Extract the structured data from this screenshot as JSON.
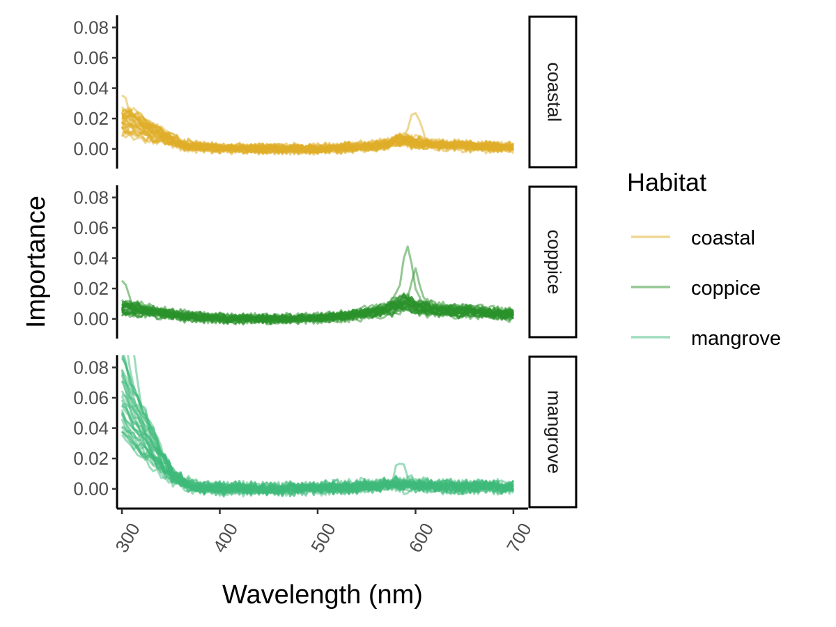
{
  "chart_data": {
    "type": "line",
    "xlabel": "Wavelength (nm)",
    "ylabel": "Importance",
    "xlim": [
      295,
      715
    ],
    "ylim": [
      -0.013,
      0.088
    ],
    "x_ticks": [
      300,
      400,
      500,
      600,
      700
    ],
    "x_tick_labels": [
      "300",
      "400",
      "500",
      "600",
      "700"
    ],
    "x_tick_rotation_deg": -60,
    "y_ticks": [
      0.0,
      0.02,
      0.04,
      0.06,
      0.08
    ],
    "y_tick_labels": [
      "0.00",
      "0.02",
      "0.04",
      "0.06",
      "0.08"
    ],
    "grid": false,
    "legend": {
      "title": "Habitat",
      "placement": "right",
      "entries": [
        {
          "label": "coastal",
          "color": "#e0ad28"
        },
        {
          "label": "coppice",
          "color": "#2a922a"
        },
        {
          "label": "mangrove",
          "color": "#3dba7a"
        }
      ]
    },
    "line_opacity": 0.5,
    "lines_per_panel": 30,
    "facets": [
      {
        "strip_label": "coastal",
        "color": "#e0ad28",
        "profile": {
          "x": [
            300,
            310,
            320,
            330,
            340,
            350,
            360,
            380,
            400,
            450,
            500,
            550,
            570,
            580,
            590,
            600,
            620,
            650,
            680,
            700
          ],
          "y": [
            0.018,
            0.018,
            0.015,
            0.012,
            0.009,
            0.006,
            0.003,
            0.0015,
            0.0005,
            0.0,
            0.0,
            0.0015,
            0.003,
            0.005,
            0.006,
            0.004,
            0.003,
            0.002,
            0.0015,
            0.001
          ]
        },
        "peaks": [
          {
            "x": 600,
            "y": 0.024
          },
          {
            "x": 300,
            "y": 0.036
          }
        ],
        "noise": 0.003
      },
      {
        "strip_label": "coppice",
        "color": "#2a922a",
        "profile": {
          "x": [
            300,
            320,
            340,
            360,
            380,
            400,
            450,
            500,
            530,
            550,
            570,
            580,
            590,
            600,
            620,
            650,
            680,
            700
          ],
          "y": [
            0.007,
            0.006,
            0.004,
            0.002,
            0.001,
            0.0005,
            0.0,
            0.0005,
            0.002,
            0.004,
            0.006,
            0.009,
            0.011,
            0.008,
            0.006,
            0.005,
            0.004,
            0.003
          ]
        },
        "peaks": [
          {
            "x": 592,
            "y": 0.044
          },
          {
            "x": 600,
            "y": 0.034
          },
          {
            "x": 300,
            "y": 0.029
          }
        ],
        "noise": 0.003
      },
      {
        "strip_label": "mangrove",
        "color": "#3dba7a",
        "profile": {
          "x": [
            300,
            305,
            310,
            320,
            330,
            340,
            350,
            360,
            370,
            380,
            400,
            450,
            500,
            550,
            580,
            600,
            650,
            700
          ],
          "y": [
            0.062,
            0.055,
            0.048,
            0.038,
            0.028,
            0.018,
            0.01,
            0.005,
            0.002,
            0.001,
            0.0003,
            0.0,
            0.0005,
            0.0015,
            0.003,
            0.002,
            0.0015,
            0.001
          ]
        },
        "peaks": [
          {
            "x": 300,
            "y": 0.085
          },
          {
            "x": 310,
            "y": 0.082
          },
          {
            "x": 585,
            "y": 0.018
          }
        ],
        "noise": 0.004
      }
    ]
  }
}
